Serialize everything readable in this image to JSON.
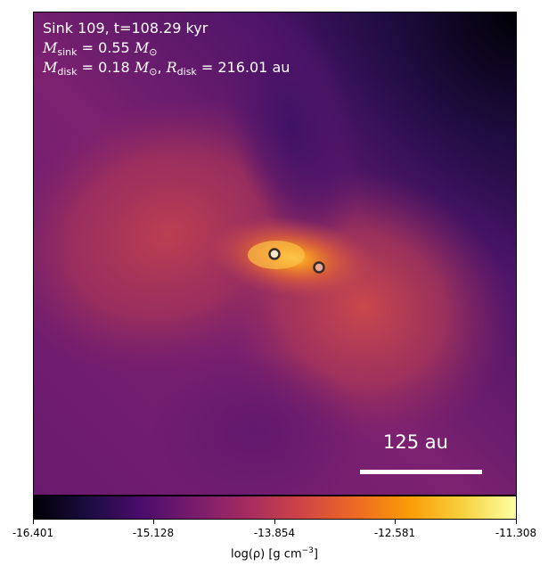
{
  "annotation": {
    "line1": "Sink 109, t=108.29 kyr",
    "sink_mass_label": "M",
    "sink_mass_sub": "sink",
    "sink_mass_value": " = 0.55 ",
    "disk_mass_label": "M",
    "disk_mass_sub": "disk",
    "disk_mass_value": " = 0.18 ",
    "solar_symbol": "M",
    "solar_sub": "⊙",
    "radius_label": "R",
    "radius_sub": "disk",
    "radius_value": " = 216.01 au",
    "comma": ", "
  },
  "scale_bar": {
    "label": "125 au"
  },
  "colorbar": {
    "ticks": [
      "-16.401",
      "-15.128",
      "-13.854",
      "-12.581",
      "-11.308"
    ],
    "label_prefix": "log(ρ) [g cm",
    "label_exp": "−3",
    "label_suffix": "]",
    "colormap": "inferno-like",
    "colors": [
      "#000004",
      "#1b0c41",
      "#4a0c6b",
      "#781c6d",
      "#a52c60",
      "#cf4446",
      "#ed6925",
      "#fb9b06",
      "#f7d13d",
      "#fcffa4"
    ]
  },
  "sinks": [
    {
      "name": "sink-primary",
      "fill": "#f4e9c9"
    },
    {
      "name": "sink-secondary",
      "fill": "#e7a895"
    }
  ]
}
